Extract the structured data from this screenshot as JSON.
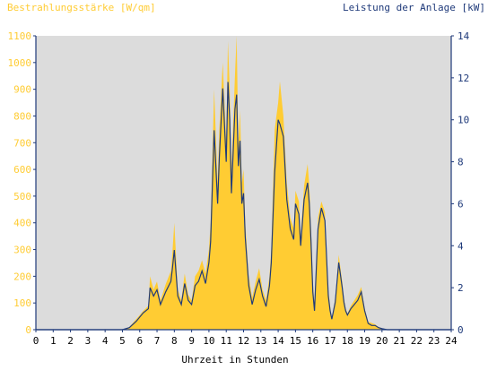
{
  "chart_data": {
    "type": "area",
    "title_left": "Bestrahlungsstärke [W/qm]",
    "title_right": "Leistung der Anlage [kW]",
    "xlabel": "Uhrzeit in Stunden",
    "xlim": [
      0,
      24
    ],
    "x_ticks": [
      "0",
      "1",
      "2",
      "3",
      "4",
      "5",
      "6",
      "7",
      "8",
      "9",
      "10",
      "11",
      "12",
      "13",
      "14",
      "15",
      "16",
      "17",
      "18",
      "19",
      "20",
      "21",
      "22",
      "23",
      "24"
    ],
    "y_left": {
      "label": "Bestrahlungsstärke [W/qm]",
      "lim": [
        0,
        1100
      ],
      "ticks": [
        "0",
        "100",
        "200",
        "300",
        "400",
        "500",
        "600",
        "700",
        "800",
        "900",
        "1000",
        "1100"
      ]
    },
    "y_right": {
      "label": "Leistung der Anlage [kW]",
      "lim": [
        0,
        14
      ],
      "ticks": [
        "0",
        "2",
        "4",
        "6",
        "8",
        "10",
        "12",
        "14"
      ]
    },
    "grid": false,
    "background": "#dcdcdc",
    "colors": {
      "irradiance": "#ffcc33",
      "power": "#1f3a7a",
      "axes": "#1f3a7a"
    },
    "series": [
      {
        "name": "Bestrahlungsstärke",
        "axis": "left",
        "x": [
          0,
          5,
          5.4,
          5.8,
          6.2,
          6.5,
          6.6,
          6.8,
          7.0,
          7.2,
          7.5,
          7.8,
          7.9,
          8.0,
          8.2,
          8.4,
          8.6,
          8.8,
          9.0,
          9.2,
          9.4,
          9.6,
          9.8,
          10.0,
          10.1,
          10.3,
          10.5,
          10.6,
          10.8,
          11.0,
          11.1,
          11.2,
          11.3,
          11.5,
          11.6,
          11.7,
          11.8,
          11.9,
          12.0,
          12.1,
          12.3,
          12.5,
          12.7,
          12.9,
          13.1,
          13.3,
          13.5,
          13.6,
          13.8,
          14.0,
          14.1,
          14.3,
          14.5,
          14.7,
          14.9,
          15.0,
          15.2,
          15.3,
          15.5,
          15.7,
          15.8,
          15.9,
          16.0,
          16.1,
          16.3,
          16.5,
          16.7,
          16.9,
          17.0,
          17.1,
          17.3,
          17.5,
          17.7,
          17.8,
          17.9,
          18.0,
          18.2,
          18.4,
          18.6,
          18.8,
          19.0,
          19.2,
          19.4,
          19.6,
          19.8,
          20.0,
          20.3,
          20.7,
          21,
          24
        ],
        "values": [
          0,
          0,
          10,
          40,
          70,
          90,
          200,
          150,
          180,
          110,
          170,
          220,
          300,
          400,
          150,
          110,
          210,
          130,
          110,
          200,
          220,
          260,
          210,
          300,
          400,
          900,
          550,
          750,
          1000,
          700,
          1080,
          900,
          600,
          950,
          1100,
          700,
          820,
          550,
          600,
          400,
          200,
          120,
          180,
          230,
          150,
          110,
          200,
          300,
          750,
          850,
          930,
          800,
          550,
          420,
          380,
          520,
          480,
          350,
          540,
          620,
          540,
          380,
          180,
          90,
          420,
          480,
          440,
          150,
          90,
          40,
          120,
          280,
          180,
          120,
          80,
          60,
          90,
          110,
          130,
          160,
          80,
          30,
          25,
          20,
          10,
          5,
          0,
          0,
          0,
          0
        ]
      },
      {
        "name": "Leistung der Anlage",
        "axis": "right",
        "x": [
          0,
          5,
          5.4,
          5.8,
          6.2,
          6.5,
          6.6,
          6.8,
          7.0,
          7.2,
          7.5,
          7.8,
          7.9,
          8.0,
          8.2,
          8.4,
          8.6,
          8.8,
          9.0,
          9.2,
          9.4,
          9.6,
          9.8,
          10.0,
          10.1,
          10.3,
          10.5,
          10.6,
          10.8,
          11.0,
          11.1,
          11.2,
          11.3,
          11.5,
          11.6,
          11.7,
          11.8,
          11.9,
          12.0,
          12.1,
          12.3,
          12.5,
          12.7,
          12.9,
          13.1,
          13.3,
          13.5,
          13.6,
          13.8,
          14.0,
          14.1,
          14.3,
          14.5,
          14.7,
          14.9,
          15.0,
          15.2,
          15.3,
          15.5,
          15.7,
          15.8,
          15.9,
          16.0,
          16.1,
          16.3,
          16.5,
          16.7,
          16.9,
          17.0,
          17.1,
          17.3,
          17.5,
          17.7,
          17.8,
          17.9,
          18.0,
          18.2,
          18.4,
          18.6,
          18.8,
          19.0,
          19.2,
          19.4,
          19.6,
          19.8,
          20.0,
          20.3,
          20.7,
          21,
          24
        ],
        "values": [
          0,
          0,
          0.1,
          0.4,
          0.8,
          1.0,
          2.0,
          1.6,
          1.9,
          1.2,
          1.8,
          2.3,
          3.0,
          3.8,
          1.6,
          1.2,
          2.2,
          1.4,
          1.2,
          2.1,
          2.3,
          2.8,
          2.2,
          3.2,
          4.2,
          9.5,
          6.0,
          8.2,
          11.5,
          8.0,
          11.8,
          10.0,
          6.5,
          10.5,
          11.2,
          7.8,
          9.0,
          6.0,
          6.5,
          4.4,
          2.1,
          1.2,
          1.9,
          2.4,
          1.6,
          1.1,
          2.1,
          3.2,
          7.5,
          10.0,
          9.8,
          9.2,
          6.2,
          4.8,
          4.3,
          6.0,
          5.5,
          4.0,
          6.2,
          7.0,
          6.0,
          4.2,
          1.8,
          0.9,
          4.8,
          5.8,
          5.2,
          1.6,
          0.9,
          0.5,
          1.3,
          3.2,
          2.0,
          1.3,
          0.9,
          0.7,
          1.0,
          1.2,
          1.4,
          1.8,
          0.9,
          0.3,
          0.2,
          0.2,
          0.1,
          0.05,
          0,
          0,
          0,
          0
        ]
      }
    ]
  }
}
